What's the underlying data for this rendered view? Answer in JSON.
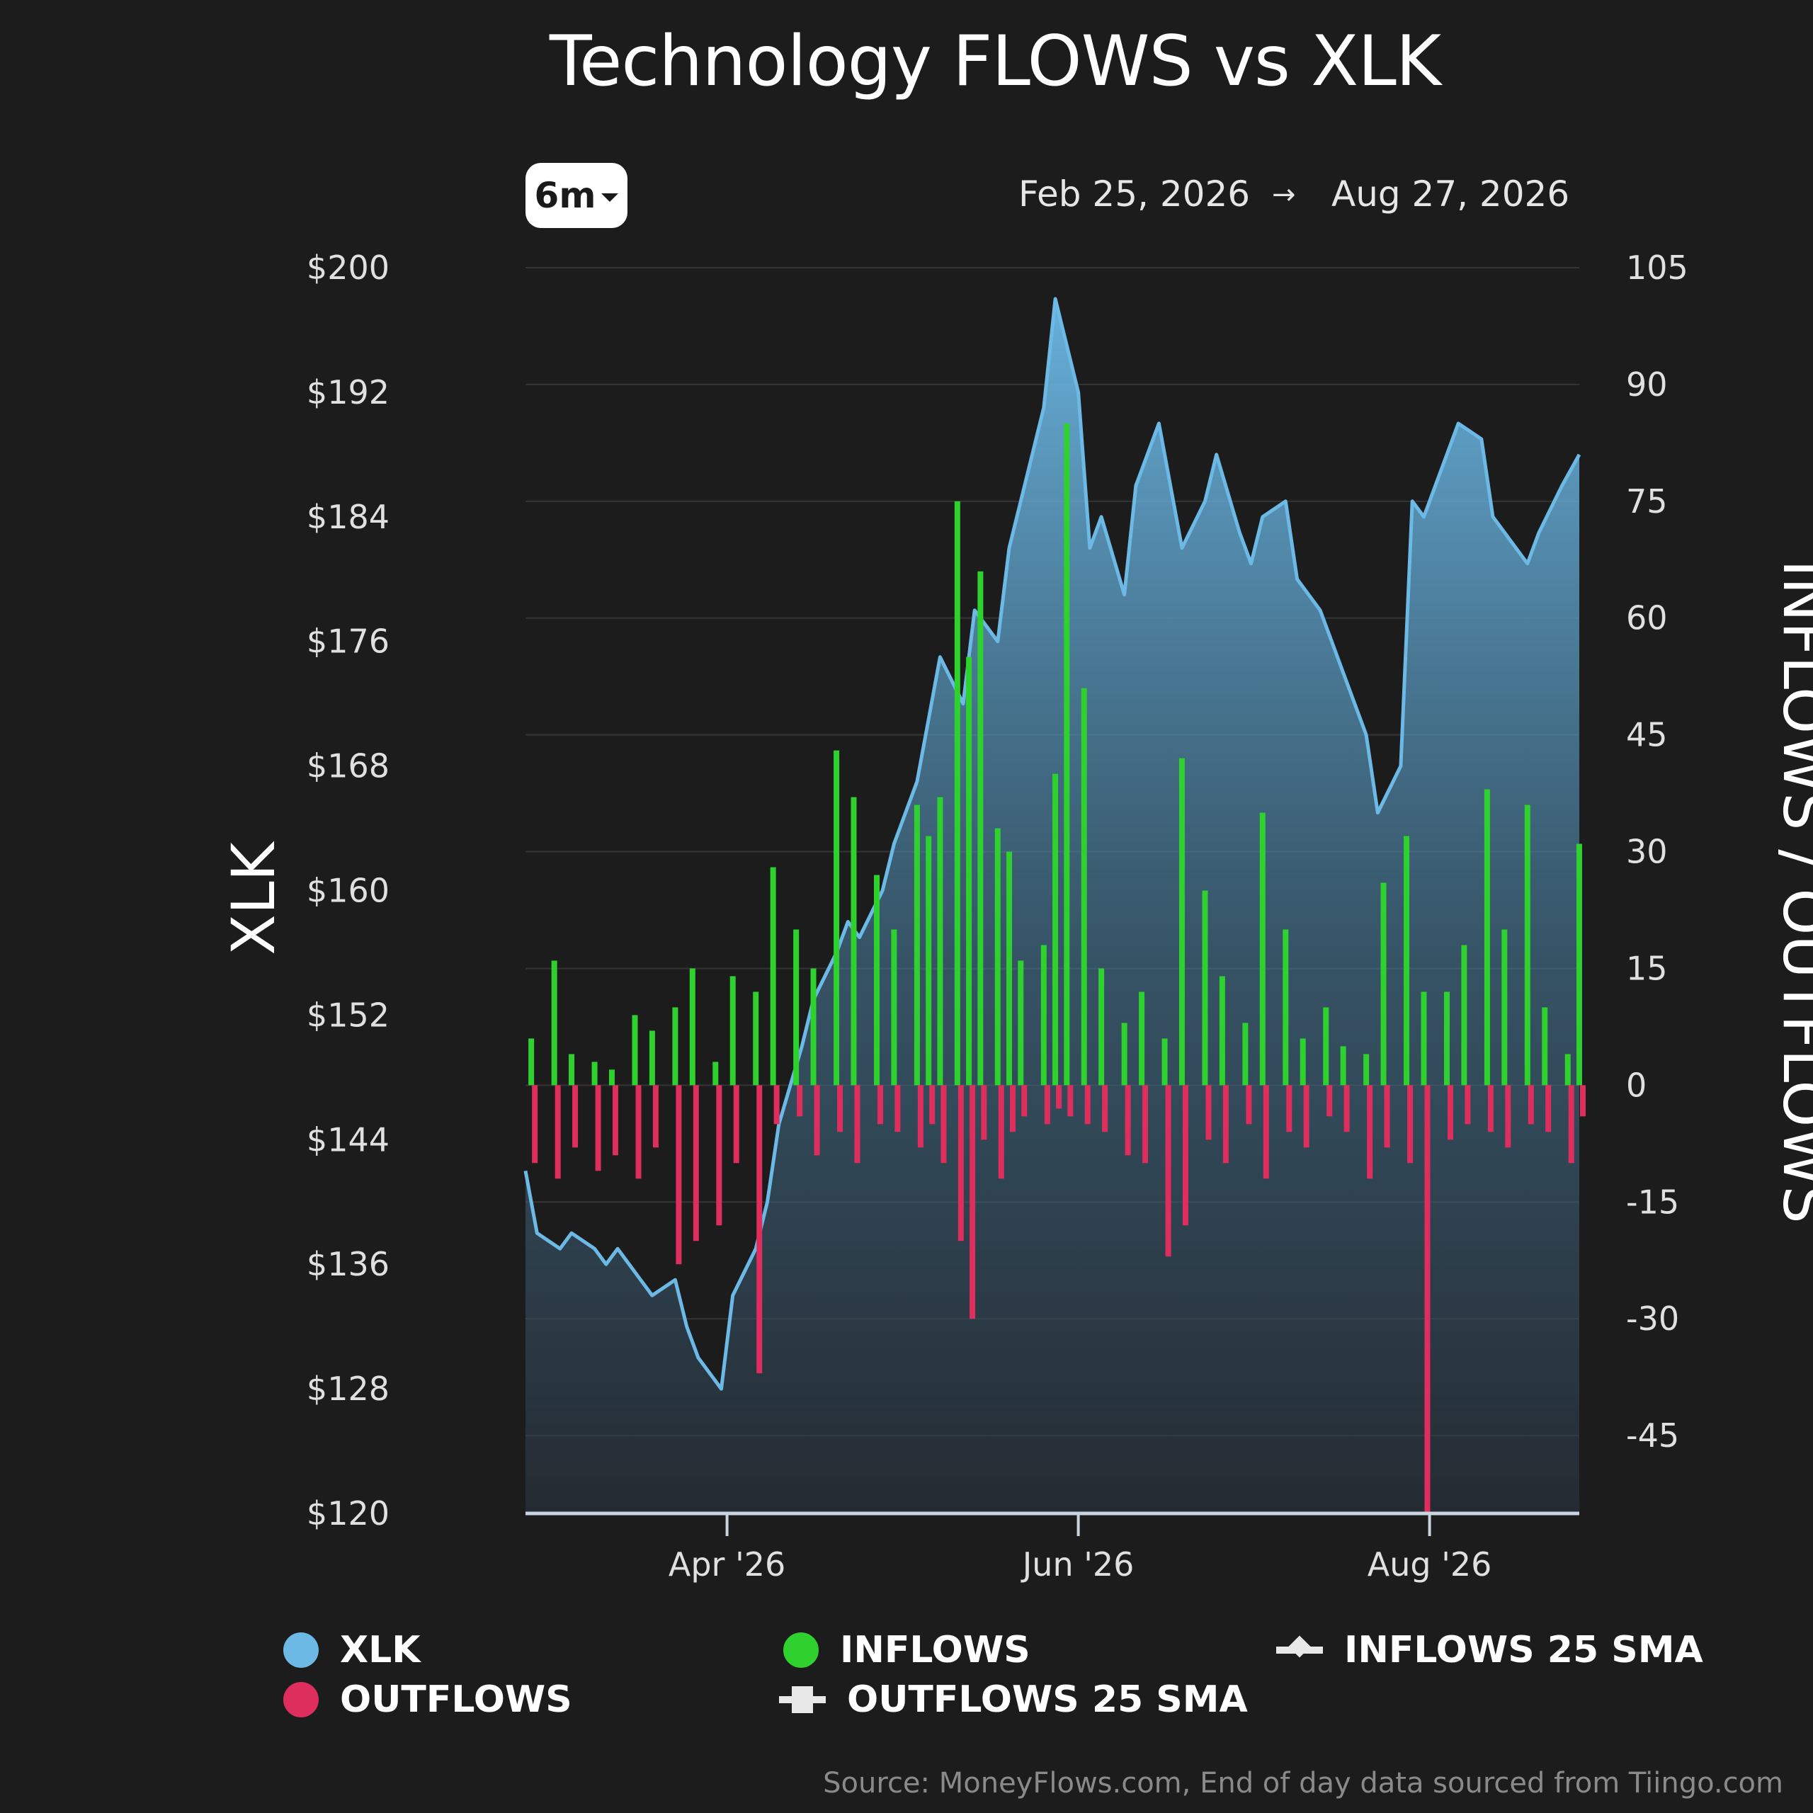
{
  "title": "Technology FLOWS vs XLK",
  "controls": {
    "range_label": "6m",
    "date_from": "Feb 25, 2026",
    "date_arrow": "→",
    "date_to": "Aug 27, 2026"
  },
  "source": "Source: MoneyFlows.com, End of day data sourced from Tiingo.com",
  "colors": {
    "background": "#1c1c1c",
    "xlk": "#6cb9e6",
    "inflows": "#2ed12e",
    "outflows": "#de2e5e",
    "grid": "#343434",
    "text": "#ffffff",
    "axis_text": "#e0e0e0"
  },
  "legend": [
    {
      "label": "XLK",
      "marker": "dot",
      "color": "#6cb9e6"
    },
    {
      "label": "OUTFLOWS",
      "marker": "dot",
      "color": "#de2e5e"
    },
    {
      "label": "INFLOWS",
      "marker": "dot",
      "color": "#2ed12e"
    },
    {
      "label": "OUTFLOWS 25 SMA",
      "marker": "square-line",
      "color": "#e8e8e8"
    },
    {
      "label": "INFLOWS 25 SMA",
      "marker": "diamond-line",
      "color": "#e8e8e8"
    }
  ],
  "chart_data": {
    "type": "bar",
    "title": "Technology FLOWS vs XLK",
    "ylabel_left": "XLK",
    "ylabel_right": "INFLOWS / OUTFLOWS",
    "ylim_left": [
      120,
      200
    ],
    "ylim_right": [
      -55,
      105
    ],
    "yticks_left": [
      120,
      128,
      136,
      144,
      152,
      160,
      168,
      176,
      184,
      192,
      200
    ],
    "yticks_left_labels": [
      "$120",
      "$128",
      "$136",
      "$144",
      "$152",
      "$160",
      "$168",
      "$176",
      "$184",
      "$192",
      "$200"
    ],
    "yticks_right": [
      -45,
      -30,
      -15,
      0,
      15,
      30,
      45,
      60,
      75,
      90,
      105
    ],
    "x_start": "Feb 25, 2026",
    "x_end": "Aug 27, 2026",
    "x_ticks": [
      {
        "date": "2026-04-01",
        "label": "Apr '26"
      },
      {
        "date": "2026-06-01",
        "label": "Jun '26"
      },
      {
        "date": "2026-08-01",
        "label": "Aug '26"
      }
    ],
    "grid": true,
    "legend_position": "bottom",
    "xlk": {
      "name": "XLK",
      "type": "area",
      "dates": [
        "2026-02-25",
        "2026-02-27",
        "2026-03-03",
        "2026-03-05",
        "2026-03-09",
        "2026-03-11",
        "2026-03-13",
        "2026-03-17",
        "2026-03-19",
        "2026-03-23",
        "2026-03-25",
        "2026-03-27",
        "2026-03-31",
        "2026-04-02",
        "2026-04-06",
        "2026-04-08",
        "2026-04-10",
        "2026-04-14",
        "2026-04-16",
        "2026-04-20",
        "2026-04-22",
        "2026-04-24",
        "2026-04-28",
        "2026-04-30",
        "2026-05-04",
        "2026-05-06",
        "2026-05-08",
        "2026-05-12",
        "2026-05-14",
        "2026-05-18",
        "2026-05-20",
        "2026-05-22",
        "2026-05-26",
        "2026-05-28",
        "2026-06-01",
        "2026-06-03",
        "2026-06-05",
        "2026-06-09",
        "2026-06-11",
        "2026-06-15",
        "2026-06-17",
        "2026-06-19",
        "2026-06-23",
        "2026-06-25",
        "2026-06-29",
        "2026-07-01",
        "2026-07-03",
        "2026-07-07",
        "2026-07-09",
        "2026-07-13",
        "2026-07-15",
        "2026-07-17",
        "2026-07-21",
        "2026-07-23",
        "2026-07-27",
        "2026-07-29",
        "2026-07-31",
        "2026-08-04",
        "2026-08-06",
        "2026-08-10",
        "2026-08-12",
        "2026-08-14",
        "2026-08-18",
        "2026-08-20",
        "2026-08-24",
        "2026-08-27"
      ],
      "values": [
        142,
        138,
        137,
        138,
        137,
        136,
        137,
        135,
        134,
        135,
        132,
        130,
        128,
        134,
        137,
        140,
        145,
        150,
        153,
        156,
        158,
        157,
        160,
        163,
        167,
        171,
        175,
        172,
        178,
        176,
        182,
        185,
        191,
        198,
        192,
        182,
        184,
        179,
        186,
        190,
        186,
        182,
        185,
        188,
        183,
        181,
        184,
        185,
        180,
        178,
        176,
        174,
        170,
        165,
        168,
        185,
        184,
        188,
        190,
        189,
        184,
        183,
        181,
        183,
        186,
        188
      ]
    },
    "inflows": {
      "name": "INFLOWS",
      "dates": [
        "2026-02-26",
        "2026-03-02",
        "2026-03-05",
        "2026-03-09",
        "2026-03-12",
        "2026-03-16",
        "2026-03-19",
        "2026-03-23",
        "2026-03-26",
        "2026-03-30",
        "2026-04-02",
        "2026-04-06",
        "2026-04-09",
        "2026-04-13",
        "2026-04-16",
        "2026-04-20",
        "2026-04-23",
        "2026-04-27",
        "2026-04-30",
        "2026-05-04",
        "2026-05-06",
        "2026-05-08",
        "2026-05-11",
        "2026-05-13",
        "2026-05-15",
        "2026-05-18",
        "2026-05-20",
        "2026-05-22",
        "2026-05-26",
        "2026-05-28",
        "2026-05-30",
        "2026-06-02",
        "2026-06-05",
        "2026-06-09",
        "2026-06-12",
        "2026-06-16",
        "2026-06-19",
        "2026-06-23",
        "2026-06-26",
        "2026-06-30",
        "2026-07-03",
        "2026-07-07",
        "2026-07-10",
        "2026-07-14",
        "2026-07-17",
        "2026-07-21",
        "2026-07-24",
        "2026-07-28",
        "2026-07-31",
        "2026-08-04",
        "2026-08-07",
        "2026-08-11",
        "2026-08-14",
        "2026-08-18",
        "2026-08-21",
        "2026-08-25",
        "2026-08-27"
      ],
      "values": [
        6,
        16,
        4,
        3,
        2,
        9,
        7,
        10,
        15,
        3,
        14,
        12,
        28,
        20,
        15,
        43,
        37,
        27,
        20,
        36,
        32,
        37,
        75,
        55,
        66,
        33,
        30,
        16,
        18,
        40,
        85,
        51,
        15,
        8,
        12,
        6,
        42,
        25,
        14,
        8,
        35,
        20,
        6,
        10,
        5,
        4,
        26,
        32,
        12,
        12,
        18,
        38,
        20,
        36,
        10,
        4,
        31
      ]
    },
    "outflows": {
      "name": "OUTFLOWS",
      "dates": [
        "2026-02-26",
        "2026-03-02",
        "2026-03-05",
        "2026-03-09",
        "2026-03-12",
        "2026-03-16",
        "2026-03-19",
        "2026-03-23",
        "2026-03-26",
        "2026-03-30",
        "2026-04-02",
        "2026-04-06",
        "2026-04-09",
        "2026-04-13",
        "2026-04-16",
        "2026-04-20",
        "2026-04-23",
        "2026-04-27",
        "2026-04-30",
        "2026-05-04",
        "2026-05-06",
        "2026-05-08",
        "2026-05-11",
        "2026-05-13",
        "2026-05-15",
        "2026-05-18",
        "2026-05-20",
        "2026-05-22",
        "2026-05-26",
        "2026-05-28",
        "2026-05-30",
        "2026-06-02",
        "2026-06-05",
        "2026-06-09",
        "2026-06-12",
        "2026-06-16",
        "2026-06-19",
        "2026-06-23",
        "2026-06-26",
        "2026-06-30",
        "2026-07-03",
        "2026-07-07",
        "2026-07-10",
        "2026-07-14",
        "2026-07-17",
        "2026-07-21",
        "2026-07-24",
        "2026-07-28",
        "2026-07-31",
        "2026-08-04",
        "2026-08-07",
        "2026-08-11",
        "2026-08-14",
        "2026-08-18",
        "2026-08-21",
        "2026-08-25",
        "2026-08-27"
      ],
      "values": [
        -10,
        -12,
        -8,
        -11,
        -9,
        -12,
        -8,
        -23,
        -20,
        -18,
        -10,
        -37,
        -5,
        -4,
        -9,
        -6,
        -10,
        -5,
        -6,
        -8,
        -5,
        -10,
        -20,
        -30,
        -7,
        -12,
        -6,
        -4,
        -5,
        -3,
        -4,
        -5,
        -6,
        -9,
        -10,
        -22,
        -18,
        -7,
        -10,
        -5,
        -12,
        -6,
        -8,
        -4,
        -6,
        -12,
        -8,
        -10,
        -55,
        -7,
        -5,
        -6,
        -8,
        -5,
        -6,
        -10,
        -4
      ]
    }
  }
}
